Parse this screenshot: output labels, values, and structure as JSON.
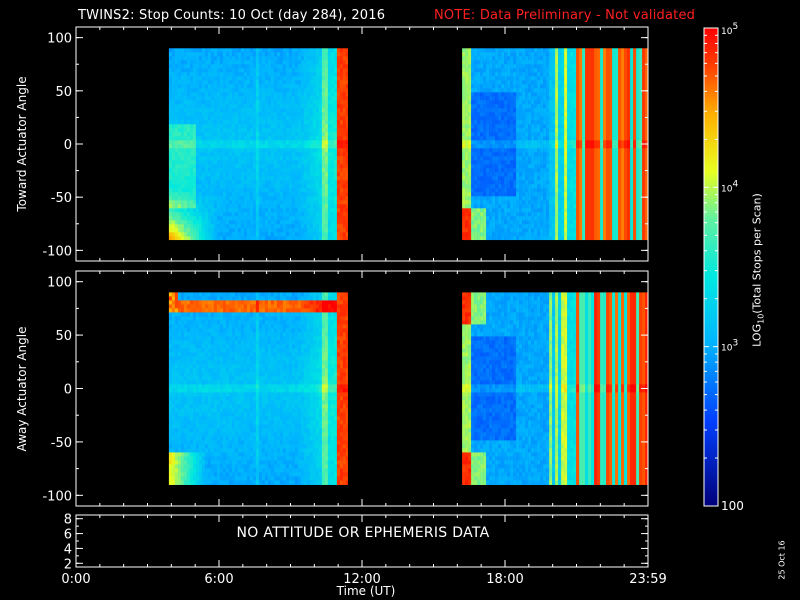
{
  "title": "TWINS2: Stop Counts: 10 Oct (day 284), 2016",
  "note": "NOTE: Data Preliminary - Not validated",
  "date_stamp": "25 Oct 16",
  "colors": {
    "background": "#000000",
    "axis": "#ffffff",
    "note": "#ff2020"
  },
  "chart_data": [
    {
      "type": "heatmap",
      "ylabel": "Toward Actuator Angle",
      "xlabel": "",
      "xlim": [
        0,
        24
      ],
      "ylim": [
        -110,
        110
      ],
      "yticks": [
        -100,
        -50,
        0,
        50,
        100
      ],
      "z_scale": "log",
      "data_segments": [
        {
          "t_start": 3.9,
          "t_end": 11.4,
          "angle_range": [
            -90,
            90
          ]
        },
        {
          "t_start": 16.2,
          "t_end": 24.0,
          "angle_range": [
            -90,
            90
          ]
        }
      ]
    },
    {
      "type": "heatmap",
      "ylabel": "Away Actuator Angle",
      "xlabel": "",
      "xlim": [
        0,
        24
      ],
      "ylim": [
        -110,
        110
      ],
      "yticks": [
        -100,
        -50,
        0,
        50,
        100
      ],
      "z_scale": "log",
      "data_segments": [
        {
          "t_start": 3.9,
          "t_end": 11.4,
          "angle_range": [
            -90,
            90
          ]
        },
        {
          "t_start": 16.2,
          "t_end": 24.0,
          "angle_range": [
            -90,
            90
          ]
        }
      ]
    },
    {
      "type": "line",
      "message": "NO ATTITUDE OR EPHEMERIS DATA",
      "xlabel": "Time (UT)",
      "xlim": [
        0,
        24
      ],
      "ylim": [
        1.5,
        8.5
      ],
      "yticks": [
        2,
        4,
        6,
        8
      ],
      "xticks": [
        0,
        6,
        12,
        18,
        24
      ],
      "xtick_labels": [
        "0:00",
        "6:00",
        "12:00",
        "18:00",
        "23:59"
      ]
    }
  ],
  "colorbar": {
    "label": "LOG10(Total Stops per Scan)",
    "scale": "log",
    "range": [
      100,
      100000
    ],
    "ticks": [
      {
        "value": 100,
        "label": "100"
      },
      {
        "value": 1000,
        "label": "10^3"
      },
      {
        "value": 10000,
        "label": "10^4"
      },
      {
        "value": 100000,
        "label": "10^5"
      }
    ]
  }
}
